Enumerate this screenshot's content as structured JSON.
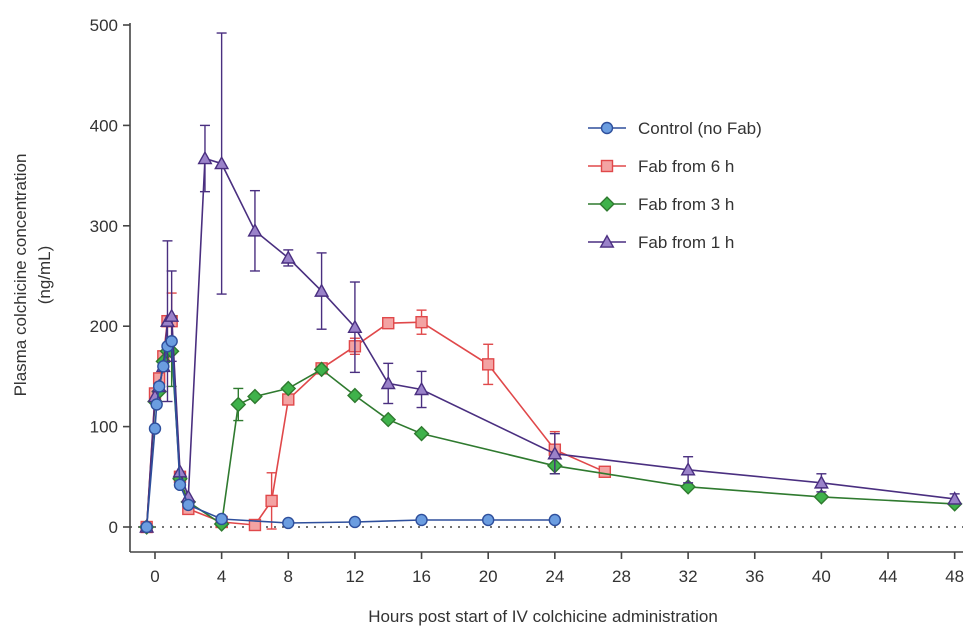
{
  "chart_data": {
    "type": "line",
    "title": "",
    "xlabel": "Hours post start of IV colchicine administration",
    "ylabel_line1": "Plasma colchicine concentration",
    "ylabel_line2": "(ng/mL)",
    "xlim": [
      -1.5,
      48.5
    ],
    "ylim": [
      0,
      500
    ],
    "xticks": [
      0,
      4,
      8,
      12,
      16,
      20,
      24,
      28,
      32,
      36,
      40,
      44,
      48
    ],
    "yticks": [
      0,
      100,
      200,
      300,
      400,
      500
    ],
    "grid": false,
    "baseline_dotted": true,
    "legend_position": "upper-right",
    "series": [
      {
        "name": "Control (no Fab)",
        "color": "#2e4f9c",
        "fill": "#6b9de0",
        "marker": "circle",
        "x": [
          -0.5,
          0,
          0.1,
          0.25,
          0.5,
          0.75,
          1.0,
          1.5,
          2,
          4,
          8,
          12,
          16,
          20,
          24
        ],
        "y": [
          0,
          98,
          122,
          140,
          160,
          180,
          185,
          42,
          22,
          8,
          4,
          5,
          7,
          7,
          7
        ],
        "err": [
          0,
          0,
          0,
          0,
          0,
          0,
          0,
          0,
          0,
          0,
          0,
          0,
          0,
          0,
          0
        ]
      },
      {
        "name": "Fab from 6 h",
        "color": "#e0484a",
        "fill": "#f3a3a3",
        "marker": "square",
        "x": [
          -0.5,
          0,
          0.25,
          0.5,
          0.75,
          1.0,
          1.5,
          2,
          4,
          6,
          7,
          8,
          10,
          12,
          14,
          16,
          20,
          24,
          27
        ],
        "y": [
          0,
          133,
          148,
          170,
          205,
          205,
          50,
          18,
          5,
          2,
          26,
          127,
          158,
          180,
          203,
          204,
          162,
          77,
          55
        ],
        "err": [
          0,
          0,
          0,
          0,
          0,
          28,
          0,
          0,
          0,
          0,
          28,
          0,
          0,
          8,
          0,
          12,
          20,
          18,
          0
        ]
      },
      {
        "name": "Fab from 3 h",
        "color": "#2f7a2f",
        "fill": "#3fb24b",
        "marker": "diamond",
        "x": [
          -0.5,
          0,
          0.25,
          0.5,
          0.75,
          1.0,
          1.5,
          2,
          4,
          5,
          6,
          8,
          10,
          12,
          14,
          16,
          24,
          32,
          40,
          48
        ],
        "y": [
          0,
          125,
          135,
          165,
          175,
          175,
          48,
          25,
          3,
          122,
          130,
          138,
          157,
          131,
          107,
          93,
          61,
          40,
          30,
          23
        ],
        "err": [
          0,
          0,
          0,
          0,
          0,
          35,
          0,
          0,
          0,
          16,
          0,
          0,
          0,
          0,
          0,
          0,
          8,
          0,
          0,
          0
        ]
      },
      {
        "name": "Fab from 1 h",
        "color": "#4a2f80",
        "fill": "#9a82c9",
        "marker": "triangle",
        "x": [
          -0.5,
          0,
          0.25,
          0.5,
          0.75,
          1.0,
          1.5,
          2,
          3,
          4,
          6,
          8,
          10,
          12,
          14,
          16,
          24,
          32,
          40,
          48
        ],
        "y": [
          0,
          130,
          140,
          160,
          205,
          210,
          55,
          30,
          367,
          362,
          295,
          268,
          235,
          199,
          143,
          137,
          73,
          57,
          44,
          28
        ],
        "err": [
          0,
          0,
          0,
          0,
          80,
          45,
          0,
          0,
          33,
          130,
          40,
          8,
          38,
          45,
          20,
          18,
          20,
          13,
          9,
          5
        ]
      }
    ]
  }
}
